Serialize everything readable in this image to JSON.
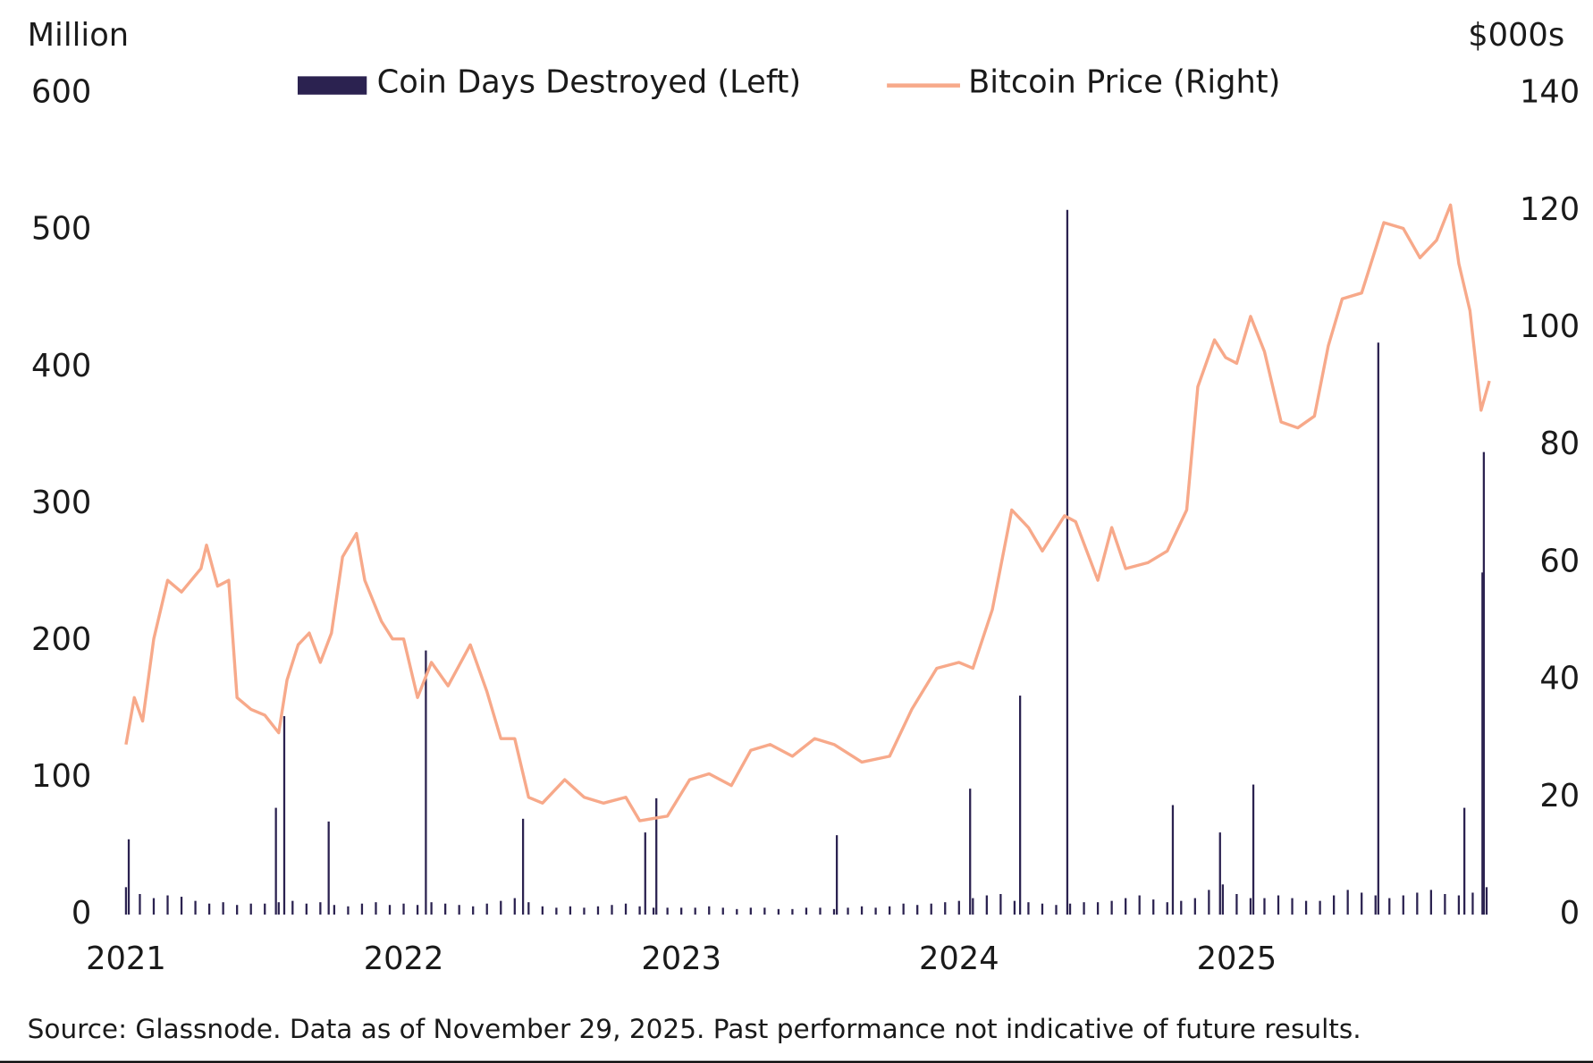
{
  "chart_data": {
    "type": "bar-line",
    "y_label": "Million",
    "y2_label": "$000s",
    "source": "Source: Glassnode. Data as of November 29, 2025. Past performance not indicative of future results.",
    "xlim": [
      2021,
      2025.91
    ],
    "xticks": [
      2021,
      2022,
      2023,
      2024,
      2025
    ],
    "ylim": [
      0,
      600
    ],
    "yticks": [
      0,
      100,
      200,
      300,
      400,
      500,
      600
    ],
    "y2lim": [
      0,
      140
    ],
    "y2ticks": [
      0,
      20,
      40,
      60,
      80,
      100,
      120,
      140
    ],
    "series": [
      {
        "name": "Coin Days Destroyed (Left)",
        "type": "bar",
        "color": "#2b2250",
        "x": [
          2021.0,
          2021.05,
          2021.1,
          2021.15,
          2021.2,
          2021.25,
          2021.3,
          2021.35,
          2021.4,
          2021.45,
          2021.5,
          2021.55,
          2021.6,
          2021.65,
          2021.7,
          2021.75,
          2021.8,
          2021.85,
          2021.9,
          2021.95,
          2022.0,
          2022.05,
          2022.1,
          2022.15,
          2022.2,
          2022.25,
          2022.3,
          2022.35,
          2022.4,
          2022.45,
          2022.5,
          2022.55,
          2022.6,
          2022.65,
          2022.7,
          2022.75,
          2022.8,
          2022.85,
          2022.9,
          2022.95,
          2023.0,
          2023.05,
          2023.1,
          2023.15,
          2023.2,
          2023.25,
          2023.3,
          2023.35,
          2023.4,
          2023.45,
          2023.5,
          2023.55,
          2023.6,
          2023.65,
          2023.7,
          2023.75,
          2023.8,
          2023.85,
          2023.9,
          2023.95,
          2024.0,
          2024.05,
          2024.1,
          2024.15,
          2024.2,
          2024.25,
          2024.3,
          2024.35,
          2024.4,
          2024.45,
          2024.5,
          2024.55,
          2024.6,
          2024.65,
          2024.7,
          2024.75,
          2024.8,
          2024.85,
          2024.9,
          2024.95,
          2025.0,
          2025.05,
          2025.1,
          2025.15,
          2025.2,
          2025.25,
          2025.3,
          2025.35,
          2025.4,
          2025.45,
          2025.5,
          2025.55,
          2025.6,
          2025.65,
          2025.7,
          2025.75,
          2025.8,
          2025.85,
          2025.9,
          2021.01,
          2021.54,
          2021.57,
          2021.73,
          2022.08,
          2022.43,
          2022.87,
          2022.91,
          2023.56,
          2024.04,
          2024.22,
          2024.39,
          2024.77,
          2024.94,
          2025.06,
          2025.51,
          2025.82,
          2025.885,
          2025.89
        ],
        "values": [
          20,
          15,
          12,
          14,
          13,
          10,
          8,
          9,
          7,
          8,
          8,
          9,
          10,
          8,
          9,
          7,
          6,
          8,
          9,
          7,
          8,
          7,
          9,
          8,
          7,
          6,
          8,
          10,
          12,
          9,
          6,
          5,
          6,
          5,
          6,
          7,
          8,
          6,
          5,
          5,
          5,
          5,
          6,
          5,
          4,
          5,
          5,
          4,
          4,
          5,
          5,
          4,
          5,
          6,
          5,
          6,
          8,
          7,
          8,
          9,
          10,
          12,
          14,
          15,
          10,
          9,
          8,
          7,
          8,
          9,
          9,
          10,
          12,
          14,
          11,
          9,
          10,
          12,
          18,
          22,
          15,
          12,
          12,
          14,
          12,
          10,
          10,
          14,
          18,
          16,
          14,
          12,
          14,
          16,
          18,
          15,
          14,
          16,
          20,
          55,
          78,
          145,
          68,
          193,
          70,
          60,
          85,
          58,
          92,
          160,
          515,
          80,
          60,
          95,
          418,
          78,
          250,
          338
        ]
      },
      {
        "name": "Bitcoin Price (Right)",
        "type": "line",
        "axis": "y2",
        "color": "#f7a98a",
        "x": [
          2021.0,
          2021.03,
          2021.06,
          2021.1,
          2021.15,
          2021.2,
          2021.27,
          2021.29,
          2021.33,
          2021.37,
          2021.4,
          2021.45,
          2021.5,
          2021.55,
          2021.58,
          2021.62,
          2021.66,
          2021.7,
          2021.74,
          2021.78,
          2021.83,
          2021.86,
          2021.92,
          2021.96,
          2022.0,
          2022.05,
          2022.1,
          2022.16,
          2022.24,
          2022.3,
          2022.35,
          2022.4,
          2022.45,
          2022.5,
          2022.58,
          2022.65,
          2022.72,
          2022.8,
          2022.85,
          2022.95,
          2023.03,
          2023.1,
          2023.18,
          2023.25,
          2023.32,
          2023.4,
          2023.48,
          2023.55,
          2023.65,
          2023.75,
          2023.83,
          2023.92,
          2024.0,
          2024.05,
          2024.12,
          2024.19,
          2024.25,
          2024.3,
          2024.38,
          2024.42,
          2024.5,
          2024.55,
          2024.6,
          2024.68,
          2024.75,
          2024.82,
          2024.86,
          2024.92,
          2024.96,
          2025.0,
          2025.05,
          2025.1,
          2025.16,
          2025.22,
          2025.28,
          2025.33,
          2025.38,
          2025.45,
          2025.53,
          2025.6,
          2025.66,
          2025.72,
          2025.77,
          2025.8,
          2025.84,
          2025.88,
          2025.91
        ],
        "values": [
          29,
          37,
          33,
          47,
          57,
          55,
          59,
          63,
          56,
          57,
          37,
          35,
          34,
          31,
          40,
          46,
          48,
          43,
          48,
          61,
          65,
          57,
          50,
          47,
          47,
          37,
          43,
          39,
          46,
          38,
          30,
          30,
          20,
          19,
          23,
          20,
          19,
          20,
          16,
          16.8,
          23,
          24,
          22,
          28,
          29,
          27,
          30,
          29,
          26,
          27,
          35,
          42,
          43,
          42,
          52,
          69,
          66,
          62,
          68,
          67,
          57,
          66,
          59,
          60,
          62,
          69,
          90,
          98,
          95,
          94,
          102,
          96,
          84,
          83,
          85,
          97,
          105,
          106,
          118,
          117,
          112,
          115,
          121,
          111,
          103,
          86,
          91
        ]
      }
    ]
  }
}
